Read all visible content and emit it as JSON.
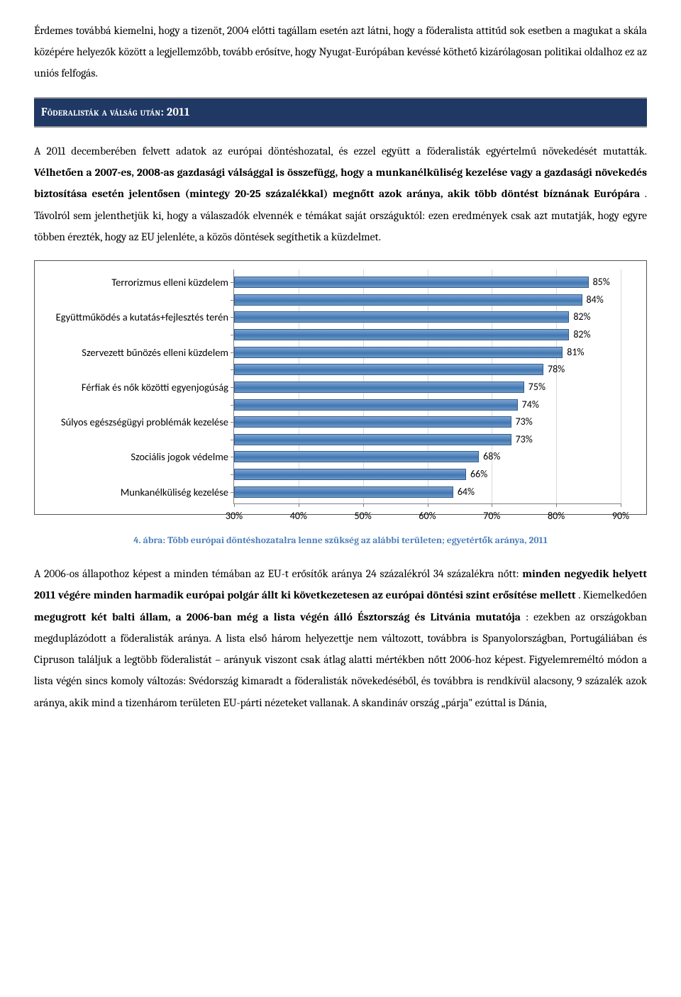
{
  "para1": "Érdemes továbbá kiemelni, hogy a tizenöt, 2004 előtti tagállam esetén azt látni, hogy a föderalista attitűd sok esetben a magukat a skála középére helyezők között a legjellemzőbb, tovább erősítve, hogy Nyugat-Európában kevéssé köthető kizárólagosan politikai oldalhoz ez az uniós felfogás.",
  "section_heading": "Föderalisták a válság után: 2011",
  "para2_pre": "A 2011 decemberében felvett adatok az európai döntéshozatal, és ezzel együtt a föderalisták egyértelmű növekedését mutatták. ",
  "para2_bold1": "Vélhetően a 2007-es, 2008-as gazdasági válsággal is összefügg, hogy a munkanélküliség kezelése vagy a gazdasági növekedés biztosítása esetén jelentősen (mintegy 20-25 százalékkal) megnőtt azok aránya, akik több döntést bíznának Európára",
  "para2_post": ". Távolról sem jelenthetjük ki, hogy a válaszadók elvennék e témákat saját országuktól: ezen eredmények csak azt mutatják, hogy egyre többen érezték, hogy az EU jelenléte, a közös döntések segíthetik a küzdelmet.",
  "chart": {
    "type": "bar-horizontal",
    "xmin": 30,
    "xmax": 90,
    "xtick_step": 10,
    "bar_color_top": "#7ea6d0",
    "bar_color_mid": "#4f81bd",
    "bar_border": "#345c89",
    "grid_color": "#d9d9d9",
    "axis_color": "#808080",
    "label_fontsize": 14.5,
    "value_fontsize": 14,
    "tick_fontsize": 14,
    "items": [
      {
        "label": "Terrorizmus elleni küzdelem",
        "value": 85,
        "show_label": true
      },
      {
        "label": "",
        "value": 84,
        "show_label": false
      },
      {
        "label": "Együttműködés a kutatás+fejlesztés terén",
        "value": 82,
        "show_label": true
      },
      {
        "label": "",
        "value": 82,
        "show_label": false
      },
      {
        "label": "Szervezett bűnözés elleni küzdelem",
        "value": 81,
        "show_label": true
      },
      {
        "label": "",
        "value": 78,
        "show_label": false
      },
      {
        "label": "Férfiak és nők közötti egyenjogúság",
        "value": 75,
        "show_label": true
      },
      {
        "label": "",
        "value": 74,
        "show_label": false
      },
      {
        "label": "Súlyos egészségügyi problémák kezelése",
        "value": 73,
        "show_label": true
      },
      {
        "label": "",
        "value": 73,
        "show_label": false
      },
      {
        "label": "Szociális jogok védelme",
        "value": 68,
        "show_label": true
      },
      {
        "label": "",
        "value": 66,
        "show_label": false
      },
      {
        "label": "Munkanélküliség kezelése",
        "value": 64,
        "show_label": true
      }
    ],
    "xticks": [
      30,
      40,
      50,
      60,
      70,
      80,
      90
    ]
  },
  "caption": "4. ábra: Több európai döntéshozatalra lenne szükség az alábbi területen; egyetértők aránya, 2011",
  "para3_a": "A 2006-os állapothoz képest a minden témában az EU-t erősítők aránya 24 százalékról 34 százalékra nőtt: ",
  "para3_bold1": "minden negyedik helyett 2011 végére minden harmadik európai polgár állt ki következetesen az európai döntési szint erősítése mellett",
  "para3_b": ". Kiemelkedően ",
  "para3_bold2": "megugrott két balti állam, a 2006-ban még a lista végén álló Észtország és Litvánia mutatója",
  "para3_c": ": ezekben az országokban megduplázódott a föderalisták aránya. A lista első három helyezettje nem változott, továbbra is Spanyolországban, Portugáliában és Cipruson találjuk a legtöbb föderalistát – arányuk viszont csak átlag alatti mértékben nőtt 2006-hoz képest. Figyelemreméltó módon a lista végén sincs komoly változás: Svédország kimaradt a föderalisták növekedéséből, és továbbra is rendkívül alacsony, 9 százalék azok aránya, akik mind a tizenhárom területen EU-párti nézeteket vallanak. A skandináv ország „párja\" ezúttal is Dánia,"
}
